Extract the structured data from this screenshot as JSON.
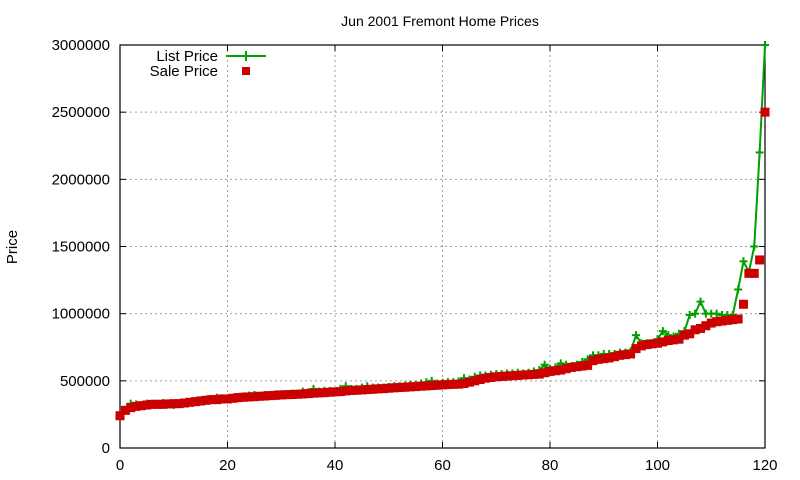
{
  "chart_data": {
    "type": "line",
    "title": "Jun 2001 Fremont Home Prices",
    "xlabel": "",
    "ylabel": "Price",
    "xlim": [
      0,
      120
    ],
    "ylim": [
      0,
      3000000
    ],
    "xticks": [
      0,
      20,
      40,
      60,
      80,
      100,
      120
    ],
    "yticks": [
      0,
      500000,
      1000000,
      1500000,
      2000000,
      2500000,
      3000000
    ],
    "grid": true,
    "legend_position": "top-left",
    "series": [
      {
        "name": "List Price",
        "style": "linespoints",
        "color": "#00a000",
        "marker": "plus",
        "values": [
          240000,
          285000,
          330000,
          325000,
          320000,
          330000,
          330000,
          330000,
          335000,
          330000,
          320000,
          330000,
          335000,
          340000,
          350000,
          355000,
          360000,
          365000,
          375000,
          370000,
          370000,
          375000,
          380000,
          385000,
          390000,
          395000,
          385000,
          395000,
          395000,
          400000,
          400000,
          400000,
          405000,
          405000,
          420000,
          415000,
          440000,
          420000,
          425000,
          425000,
          420000,
          440000,
          460000,
          440000,
          440000,
          450000,
          460000,
          450000,
          450000,
          450000,
          455000,
          460000,
          460000,
          465000,
          470000,
          470000,
          480000,
          490000,
          500000,
          480000,
          485000,
          490000,
          490000,
          495000,
          520000,
          510000,
          530000,
          540000,
          540000,
          545000,
          550000,
          550000,
          555000,
          555000,
          560000,
          555000,
          560000,
          570000,
          580000,
          620000,
          590000,
          600000,
          630000,
          620000,
          610000,
          620000,
          640000,
          660000,
          690000,
          690000,
          700000,
          700000,
          700000,
          710000,
          710000,
          720000,
          840000,
          780000,
          780000,
          780000,
          810000,
          870000,
          840000,
          830000,
          850000,
          870000,
          990000,
          1000000,
          1090000,
          1000000,
          1000000,
          1000000,
          990000,
          990000,
          990000,
          1180000,
          1390000,
          1310000,
          1500000,
          2200000,
          3000000
        ]
      },
      {
        "name": "Sale Price",
        "style": "points",
        "color": "#cc0000",
        "marker": "square",
        "values": [
          240000,
          280000,
          300000,
          310000,
          315000,
          320000,
          325000,
          325000,
          325000,
          328000,
          330000,
          330000,
          335000,
          340000,
          345000,
          350000,
          355000,
          360000,
          360000,
          365000,
          365000,
          370000,
          375000,
          378000,
          380000,
          382000,
          385000,
          387000,
          390000,
          392000,
          395000,
          397000,
          398000,
          400000,
          402000,
          405000,
          408000,
          410000,
          412000,
          415000,
          418000,
          420000,
          425000,
          428000,
          430000,
          432000,
          435000,
          437000,
          440000,
          442000,
          445000,
          448000,
          450000,
          452000,
          455000,
          457000,
          460000,
          462000,
          465000,
          467000,
          470000,
          472000,
          474000,
          475000,
          480000,
          490000,
          500000,
          510000,
          520000,
          525000,
          530000,
          533000,
          535000,
          538000,
          540000,
          543000,
          545000,
          548000,
          550000,
          560000,
          570000,
          575000,
          580000,
          590000,
          600000,
          605000,
          610000,
          615000,
          650000,
          660000,
          665000,
          670000,
          680000,
          690000,
          695000,
          700000,
          740000,
          760000,
          770000,
          775000,
          780000,
          790000,
          800000,
          805000,
          810000,
          840000,
          850000,
          880000,
          890000,
          910000,
          930000,
          940000,
          945000,
          950000,
          955000,
          960000,
          1070000,
          1300000,
          1300000,
          1400000,
          2500000
        ]
      }
    ]
  }
}
